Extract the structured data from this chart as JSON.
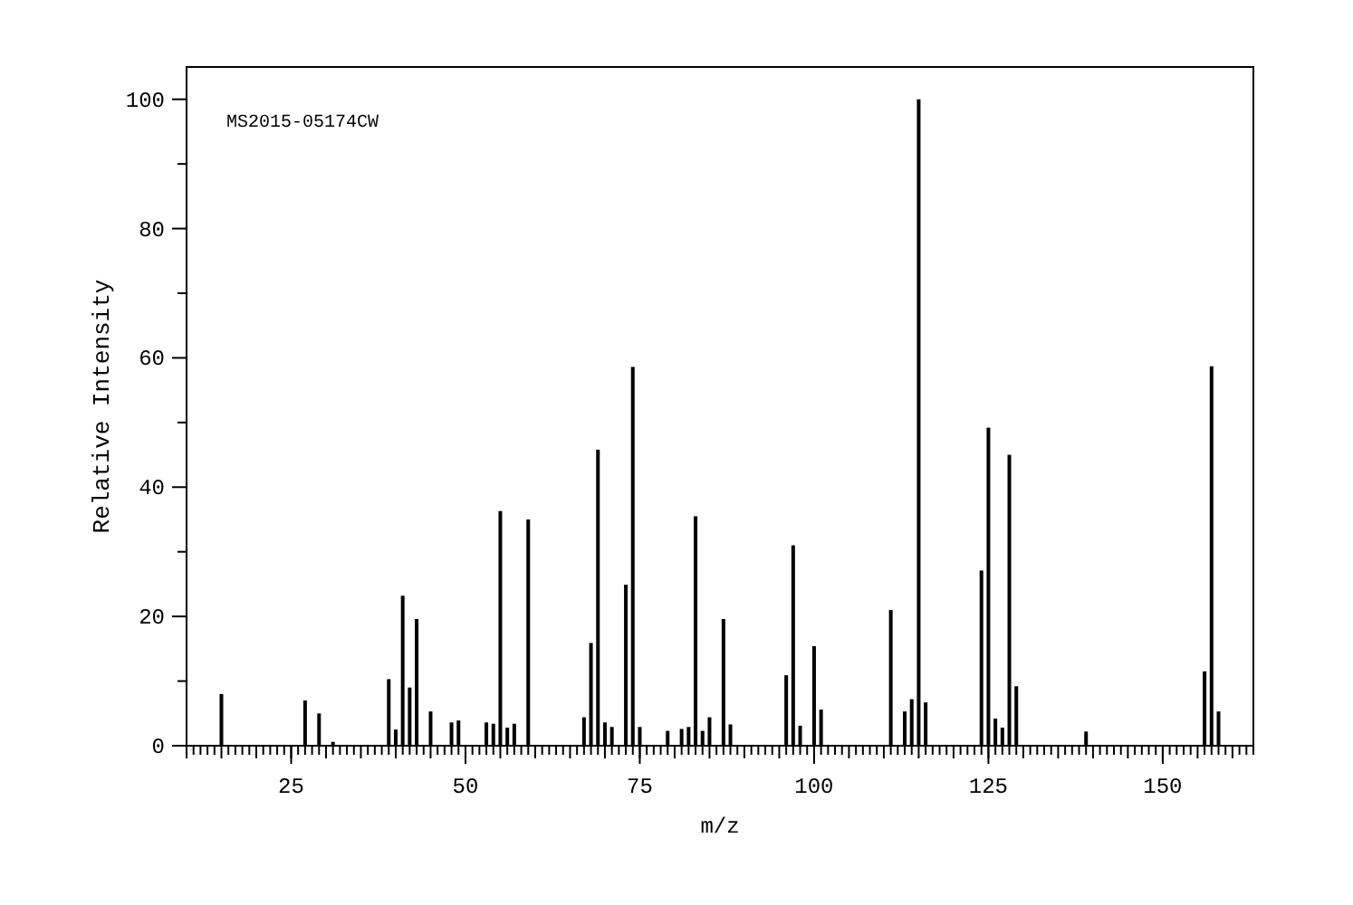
{
  "chart_data": {
    "type": "bar",
    "xlabel": "m/z",
    "ylabel": "Relative Intensity",
    "annotations": [
      "MS2015-05174CW"
    ],
    "x": [
      15,
      27,
      29,
      31,
      39,
      40,
      41,
      42,
      43,
      45,
      48,
      49,
      53,
      54,
      55,
      56,
      57,
      59,
      67,
      68,
      69,
      70,
      71,
      73,
      74,
      75,
      79,
      81,
      82,
      83,
      84,
      85,
      87,
      88,
      96,
      97,
      98,
      100,
      101,
      111,
      113,
      114,
      115,
      116,
      124,
      125,
      126,
      127,
      128,
      129,
      139,
      156,
      157,
      158
    ],
    "values": [
      8,
      7,
      5,
      0.6,
      10.3,
      2.5,
      23.2,
      9,
      19.6,
      5.3,
      3.6,
      3.9,
      3.6,
      3.4,
      36.3,
      2.8,
      3.4,
      35,
      4.4,
      15.9,
      45.8,
      3.6,
      2.9,
      24.9,
      58.6,
      2.9,
      2.3,
      2.6,
      2.9,
      35.5,
      2.3,
      4.4,
      19.6,
      3.3,
      10.9,
      31,
      3.1,
      15.4,
      5.6,
      21,
      5.3,
      7.2,
      100,
      6.7,
      27.1,
      49.2,
      4.2,
      2.8,
      45,
      9.2,
      2.2,
      11.5,
      58.7,
      5.3
    ],
    "color": "#000000",
    "xlim": [
      10,
      163
    ],
    "xticks": [
      25,
      50,
      75,
      100,
      125,
      150
    ],
    "ylim": [
      0,
      105
    ],
    "yticks": [
      0,
      {
        "value": 10,
        "label": null
      },
      20,
      {
        "value": 30,
        "label": null
      },
      40,
      {
        "value": 50,
        "label": null
      },
      60,
      {
        "value": 70,
        "label": null
      },
      80,
      {
        "value": 90,
        "label": null
      },
      100
    ]
  }
}
